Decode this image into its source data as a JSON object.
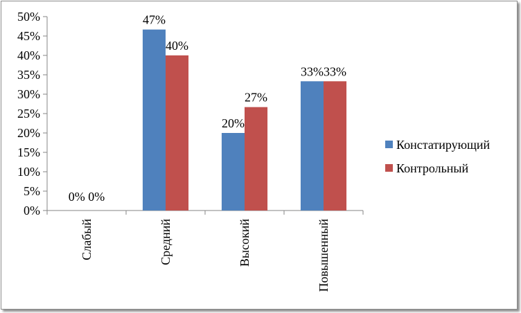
{
  "chart_data": {
    "type": "bar",
    "categories": [
      "Слабый",
      "Средний",
      "Высокий",
      "Повышенный"
    ],
    "series": [
      {
        "name": "Констатирующий",
        "values": [
          0,
          46.67,
          20,
          33.33
        ],
        "labels": [
          "0%",
          "47%",
          "20%",
          "33%"
        ],
        "color": "#4f81bd"
      },
      {
        "name": "Контрольный",
        "values": [
          0,
          40,
          26.67,
          33.33
        ],
        "labels": [
          "0%",
          "40%",
          "27%",
          "33%"
        ],
        "color": "#c0504d"
      }
    ],
    "y_ticks": [
      "0%",
      "5%",
      "10%",
      "15%",
      "20%",
      "25%",
      "30%",
      "35%",
      "40%",
      "45%",
      "50%"
    ],
    "ylim": [
      0,
      50
    ],
    "grid": false,
    "legend_position": "right",
    "title": "",
    "xlabel": "",
    "ylabel": ""
  }
}
